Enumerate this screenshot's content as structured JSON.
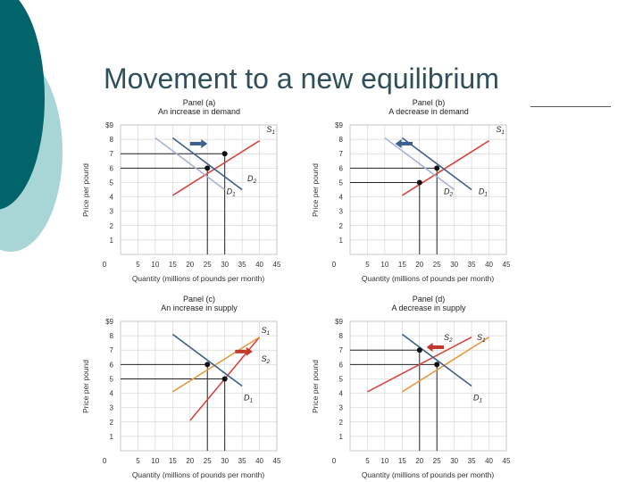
{
  "slide": {
    "title": "Movement to a new equilibrium",
    "colors": {
      "teal_dark": "#00646a",
      "teal_light": "#a8d5d6",
      "title_text": "#2f4f5a"
    }
  },
  "axes": {
    "y_label": "Price per pound",
    "x_label": "Quantity (millions of pounds per month)",
    "y_ticks": [
      "$9",
      "8",
      "7",
      "6",
      "5",
      "4",
      "3",
      "2",
      "1"
    ],
    "x_ticks": [
      "0",
      "5",
      "10",
      "15",
      "20",
      "25",
      "30",
      "35",
      "40",
      "45"
    ],
    "xlim": [
      0,
      45
    ],
    "ylim": [
      0,
      9
    ],
    "grid": true
  },
  "chart_data": [
    {
      "type": "line",
      "panel": "Panel (a)",
      "title": "An increase in demand",
      "series": [
        {
          "name": "S1",
          "color": "#d8453c",
          "points": [
            [
              15,
              4.1
            ],
            [
              40,
              7.9
            ]
          ]
        },
        {
          "name": "D1",
          "color": "#a8b0d8",
          "points": [
            [
              10,
              8.1
            ],
            [
              30,
              4.5
            ]
          ]
        },
        {
          "name": "D2",
          "color": "#3d5f8e",
          "points": [
            [
              15,
              8.1
            ],
            [
              35,
              4.5
            ]
          ]
        }
      ],
      "guides": [
        {
          "kind": "black",
          "x": 25,
          "y": 6
        },
        {
          "kind": "black",
          "x": 30,
          "y": 7
        }
      ],
      "equilibria": [
        [
          25,
          6
        ],
        [
          30,
          7
        ]
      ],
      "arrow": {
        "direction": "right",
        "color": "#3d5f8e",
        "from": [
          20,
          7.7
        ],
        "to": [
          25,
          7.7
        ]
      },
      "labels": [
        {
          "text": "S",
          "sub": "1",
          "at": [
            42,
            8.5
          ]
        },
        {
          "text": "D",
          "sub": "2",
          "at": [
            36.5,
            5.1
          ]
        },
        {
          "text": "D",
          "sub": "1",
          "at": [
            30.5,
            4.2
          ]
        }
      ]
    },
    {
      "type": "line",
      "panel": "Panel (b)",
      "title": "A decrease in demand",
      "series": [
        {
          "name": "S1",
          "color": "#d8453c",
          "points": [
            [
              15,
              4.1
            ],
            [
              40,
              7.9
            ]
          ]
        },
        {
          "name": "D1",
          "color": "#3d5f8e",
          "points": [
            [
              15,
              8.1
            ],
            [
              35,
              4.5
            ]
          ]
        },
        {
          "name": "D2",
          "color": "#a8b0d8",
          "points": [
            [
              10,
              8.1
            ],
            [
              30,
              4.5
            ]
          ]
        }
      ],
      "guides": [
        {
          "kind": "black",
          "x": 25,
          "y": 6
        },
        {
          "kind": "black",
          "x": 20,
          "y": 5
        }
      ],
      "equilibria": [
        [
          25,
          6
        ],
        [
          20,
          5
        ]
      ],
      "arrow": {
        "direction": "left",
        "color": "#3d5f8e",
        "from": [
          18,
          7.7
        ],
        "to": [
          13,
          7.7
        ]
      },
      "labels": [
        {
          "text": "S",
          "sub": "1",
          "at": [
            42,
            8.5
          ]
        },
        {
          "text": "D",
          "sub": "2",
          "at": [
            27,
            4.2
          ]
        },
        {
          "text": "D",
          "sub": "1",
          "at": [
            37,
            4.2
          ]
        }
      ]
    },
    {
      "type": "line",
      "panel": "Panel (c)",
      "title": "An increase in supply",
      "series": [
        {
          "name": "S1",
          "color": "#d8453c",
          "points": [
            [
              20,
              2.1
            ],
            [
              40,
              7.9
            ]
          ]
        },
        {
          "name": "S2",
          "color": "#e89a44",
          "points": [
            [
              15,
              4.1
            ],
            [
              40,
              7.9
            ]
          ]
        },
        {
          "name": "D1",
          "color": "#3d5f8e",
          "points": [
            [
              15,
              8.1
            ],
            [
              35,
              4.5
            ]
          ]
        }
      ],
      "guides": [
        {
          "kind": "black",
          "x": 25,
          "y": 6
        },
        {
          "kind": "black",
          "x": 30,
          "y": 5
        }
      ],
      "equilibria": [
        [
          25,
          6
        ],
        [
          30,
          5
        ]
      ],
      "arrow": {
        "direction": "right",
        "color": "#c0392b",
        "from": [
          33,
          6.9
        ],
        "to": [
          38,
          6.9
        ]
      },
      "labels": [
        {
          "text": "S",
          "sub": "1",
          "at": [
            40.5,
            8.2
          ]
        },
        {
          "text": "S",
          "sub": "2",
          "at": [
            40.5,
            6.2
          ]
        },
        {
          "text": "D",
          "sub": "1",
          "at": [
            35.5,
            3.5
          ]
        }
      ]
    },
    {
      "type": "line",
      "panel": "Panel (d)",
      "title": "A decrease in supply",
      "series": [
        {
          "name": "S1",
          "color": "#e89a44",
          "points": [
            [
              15,
              4.1
            ],
            [
              40,
              7.9
            ]
          ]
        },
        {
          "name": "S2",
          "color": "#d8453c",
          "points": [
            [
              5,
              4.1
            ],
            [
              35,
              7.9
            ]
          ]
        },
        {
          "name": "D1",
          "color": "#3d5f8e",
          "points": [
            [
              15,
              8.1
            ],
            [
              35,
              4.5
            ]
          ]
        }
      ],
      "guides": [
        {
          "kind": "black",
          "x": 25,
          "y": 6
        },
        {
          "kind": "black",
          "x": 20,
          "y": 7
        }
      ],
      "equilibria": [
        [
          25,
          6
        ],
        [
          20,
          7
        ]
      ],
      "arrow": {
        "direction": "left",
        "color": "#c0392b",
        "from": [
          27,
          7.2
        ],
        "to": [
          22,
          7.2
        ]
      },
      "labels": [
        {
          "text": "S",
          "sub": "2",
          "at": [
            27,
            7.7
          ]
        },
        {
          "text": "S",
          "sub": "1",
          "at": [
            36.5,
            7.7
          ]
        },
        {
          "text": "D",
          "sub": "1",
          "at": [
            35.5,
            3.5
          ]
        }
      ]
    }
  ]
}
